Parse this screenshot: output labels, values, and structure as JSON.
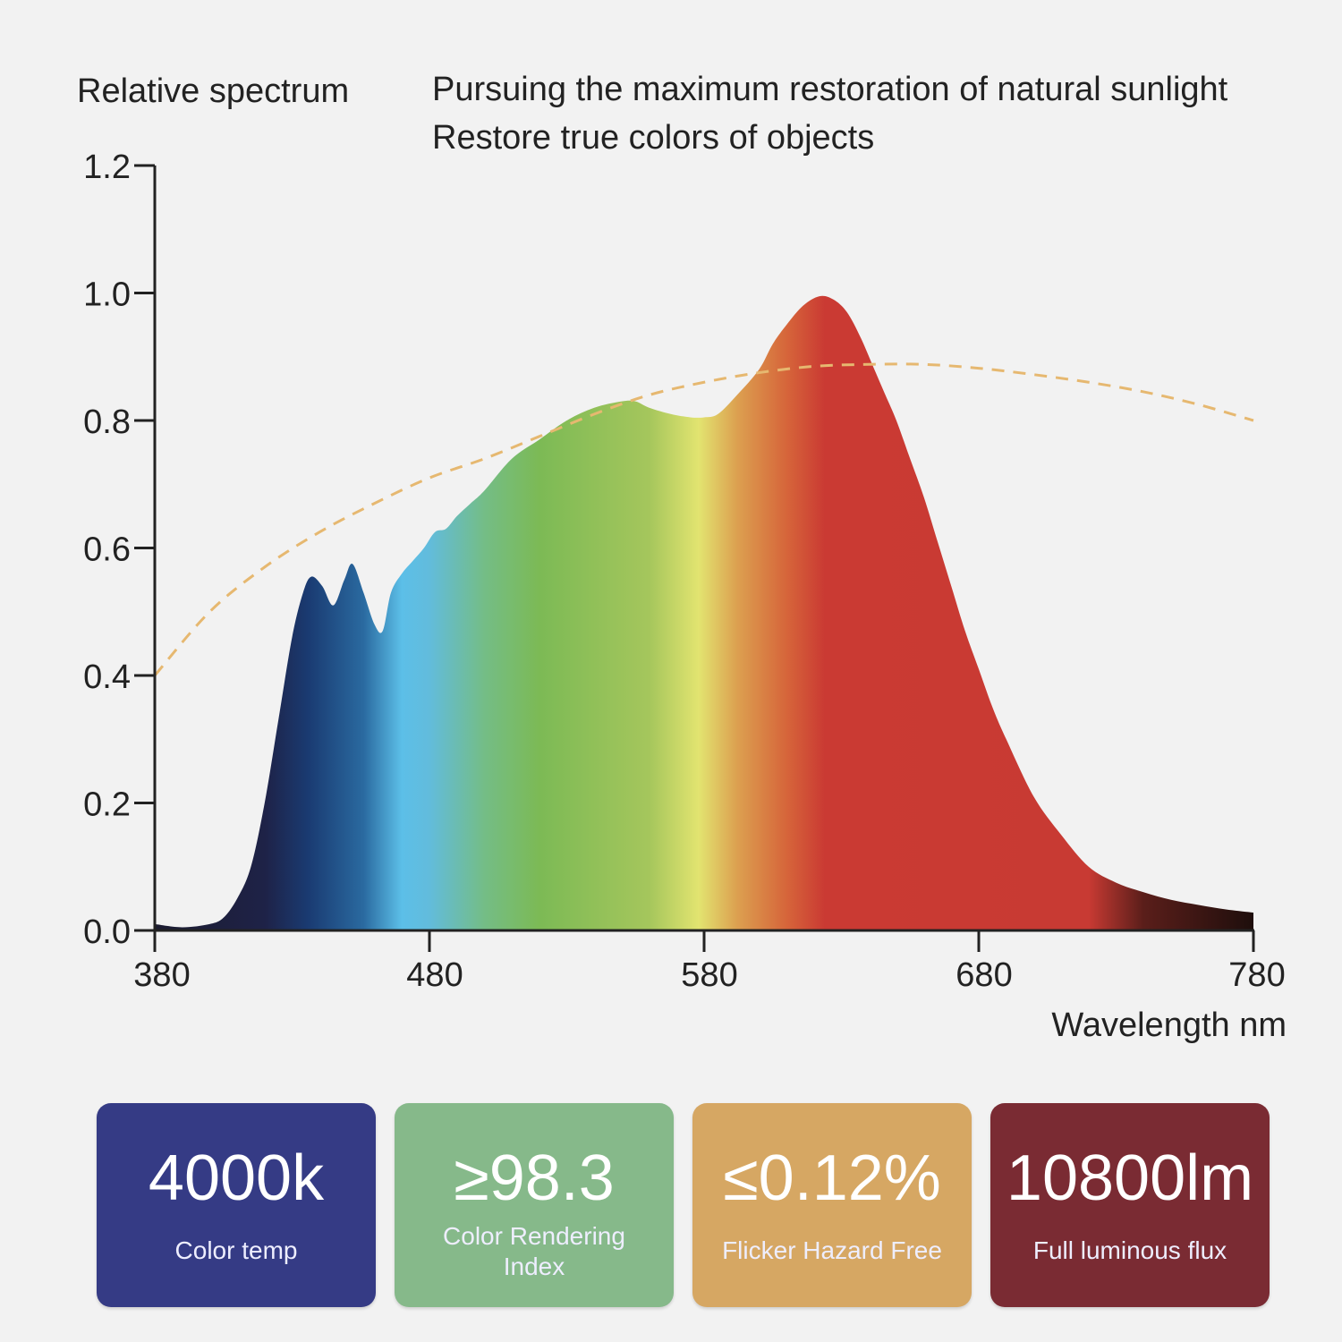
{
  "chart_data": {
    "type": "area",
    "ylabel": "Relative spectrum",
    "xlabel": "Wavelength nm",
    "subtitle_lines": [
      "Pursuing the maximum restoration of natural sunlight",
      "Restore true colors of objects"
    ],
    "xlim": [
      380,
      780
    ],
    "ylim": [
      0,
      1.2
    ],
    "x_ticks": [
      "380",
      "480",
      "580",
      "680",
      "780"
    ],
    "y_ticks": [
      "0.0",
      "0.2",
      "0.4",
      "0.6",
      "0.8",
      "1.0",
      "1.2"
    ],
    "series": [
      {
        "name": "LED spectrum",
        "style": "filled-rainbow",
        "x": [
          380,
          390,
          400,
          405,
          410,
          415,
          420,
          425,
          430,
          434,
          437,
          441,
          445,
          449,
          452,
          456,
          460,
          463,
          466,
          470,
          474,
          478,
          482,
          486,
          490,
          495,
          500,
          510,
          520,
          530,
          540,
          550,
          555,
          560,
          568,
          575,
          580,
          585,
          592,
          600,
          605,
          610,
          616,
          622,
          627,
          632,
          637,
          642,
          646,
          650,
          655,
          660,
          665,
          670,
          675,
          680,
          685,
          690,
          700,
          710,
          720,
          730,
          740,
          750,
          760,
          770,
          780
        ],
        "values": [
          0.01,
          0.005,
          0.01,
          0.02,
          0.05,
          0.1,
          0.2,
          0.33,
          0.46,
          0.53,
          0.555,
          0.54,
          0.51,
          0.55,
          0.575,
          0.53,
          0.48,
          0.47,
          0.53,
          0.56,
          0.58,
          0.6,
          0.625,
          0.63,
          0.65,
          0.67,
          0.69,
          0.74,
          0.77,
          0.8,
          0.82,
          0.83,
          0.83,
          0.82,
          0.81,
          0.805,
          0.805,
          0.81,
          0.84,
          0.88,
          0.92,
          0.95,
          0.98,
          0.995,
          0.99,
          0.97,
          0.93,
          0.88,
          0.84,
          0.8,
          0.74,
          0.68,
          0.61,
          0.54,
          0.47,
          0.41,
          0.35,
          0.3,
          0.21,
          0.15,
          0.1,
          0.075,
          0.06,
          0.048,
          0.04,
          0.033,
          0.028
        ]
      },
      {
        "name": "Natural sunlight",
        "style": "dashed",
        "color": "#e6b870",
        "x": [
          380,
          400,
          420,
          440,
          460,
          480,
          500,
          520,
          540,
          560,
          580,
          600,
          620,
          640,
          660,
          680,
          700,
          720,
          740,
          760,
          780
        ],
        "values": [
          0.4,
          0.5,
          0.57,
          0.625,
          0.67,
          0.71,
          0.74,
          0.775,
          0.81,
          0.84,
          0.86,
          0.875,
          0.885,
          0.888,
          0.888,
          0.882,
          0.872,
          0.86,
          0.845,
          0.825,
          0.8
        ]
      }
    ],
    "grid": false,
    "legend": "none"
  },
  "cards": [
    {
      "value": "4000k",
      "label": "Color temp",
      "color": "#353b85"
    },
    {
      "value": "≥98.3",
      "label": "Color Rendering Index",
      "color": "#86b98a"
    },
    {
      "value": "≤0.12%",
      "label": "Flicker Hazard Free",
      "color": "#d6a763"
    },
    {
      "value": "10800lm",
      "label": "Full luminous flux",
      "color": "#7a2b33"
    }
  ]
}
